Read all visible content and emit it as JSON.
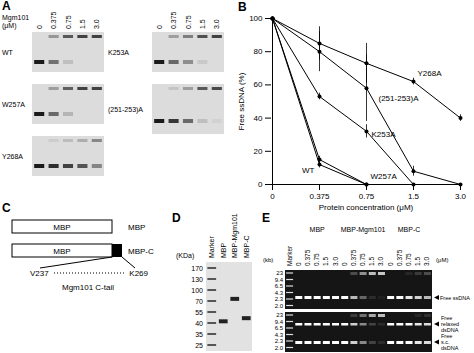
{
  "chart_data": {
    "type": "line",
    "xlabel": "Protein concentration (μM)",
    "ylabel": "Free ssDNA (%)",
    "categories": [
      "0",
      "0.375",
      "0.75",
      "1.5",
      "3.0"
    ],
    "ylim": [
      0,
      100
    ],
    "yticks": [
      0,
      20,
      40,
      60,
      80,
      100
    ],
    "marker": "circle",
    "color": "#000000",
    "series": [
      {
        "name": "WT",
        "values": [
          100,
          12,
          0,
          null,
          null
        ],
        "errors": [
          0,
          2,
          0,
          null,
          null
        ]
      },
      {
        "name": "W257A",
        "values": [
          100,
          15,
          0,
          null,
          null
        ],
        "errors": [
          0,
          2,
          0,
          null,
          null
        ]
      },
      {
        "name": "Y268A",
        "values": [
          100,
          85,
          73,
          62,
          40
        ],
        "errors": [
          0,
          10,
          12,
          2,
          2
        ]
      },
      {
        "name": "K253A",
        "values": [
          100,
          53,
          32,
          0,
          null
        ],
        "errors": [
          0,
          2,
          4,
          0,
          null
        ]
      },
      {
        "name": "(251-253)A",
        "values": [
          100,
          80,
          58,
          8,
          0
        ],
        "errors": [
          0,
          12,
          20,
          3,
          0
        ]
      }
    ]
  },
  "figure": {
    "panel_labels": [
      "A",
      "B",
      "C",
      "D",
      "E"
    ],
    "panel_A": {
      "title_lines": [
        "Mgm101",
        "(μM)"
      ],
      "lanes": [
        "0",
        "0.375",
        "0.75",
        "1.5",
        "3.0"
      ],
      "gels": [
        {
          "name": "WT",
          "free_band": [
            1,
            0.55,
            0.15,
            0,
            0
          ]
        },
        {
          "name": "W257A",
          "free_band": [
            1,
            0.6,
            0.2,
            0,
            0
          ]
        },
        {
          "name": "Y268A",
          "free_band": [
            1,
            0.9,
            0.8,
            0.7,
            0.45
          ]
        },
        {
          "name": "K253A",
          "free_band": [
            1,
            0.6,
            0.4,
            0.1,
            0
          ]
        },
        {
          "name": "(251-253)A",
          "free_band": [
            1,
            0.85,
            0.6,
            0.15,
            0.05
          ]
        }
      ]
    },
    "panel_C": {
      "constructs": [
        {
          "box": "MBP",
          "name": "MBP"
        },
        {
          "box": "MBP",
          "name": "MBP-C"
        }
      ],
      "tail_start": "V237",
      "tail_end": "K269",
      "tail_name": "Mgm101 C-tail"
    },
    "panel_D": {
      "unit": "(KDa)",
      "lanes": [
        "Marker",
        "MBP",
        "MBP-Mgm101",
        "MBP-C"
      ],
      "ladder": [
        170,
        130,
        100,
        70,
        55,
        40,
        35,
        25
      ],
      "bands": [
        null,
        42,
        75,
        46
      ]
    },
    "panel_E": {
      "unit": "(μM)",
      "size_unit": "(kb)",
      "marker": "Marker",
      "lanes": [
        "0",
        "0.375",
        "0.75",
        "1.5",
        "3.0"
      ],
      "groups": [
        {
          "name": "MBP",
          "top": [
            1,
            1,
            1,
            1,
            1
          ],
          "bottom": [
            1,
            1,
            1,
            1,
            1
          ]
        },
        {
          "name": "MBP-Mgm101",
          "top": [
            1,
            0.7,
            0.35,
            0.1,
            0.05
          ],
          "bottom": [
            1,
            0.8,
            0.5,
            0.2,
            0.1
          ]
        },
        {
          "name": "MBP-C",
          "top": [
            1,
            1,
            0.9,
            0.8,
            0.7
          ],
          "bottom": [
            1,
            1,
            1,
            0.9,
            0.85
          ]
        }
      ],
      "ladder_top": [
        23,
        9.4,
        6.5,
        4.3,
        2.3,
        {
          "value": 2,
          "label": "2.0"
        }
      ],
      "ladder_bottom": [
        23,
        9.4,
        6.5,
        4.3,
        2.3,
        {
          "value": 2,
          "label": "2.0"
        }
      ],
      "top_label": "Free ssDNA",
      "bottom_labels": [
        [
          "Free",
          "relaxed",
          "dsDNA"
        ],
        [
          "Free",
          "s.c.",
          "dsDNA"
        ]
      ]
    }
  }
}
